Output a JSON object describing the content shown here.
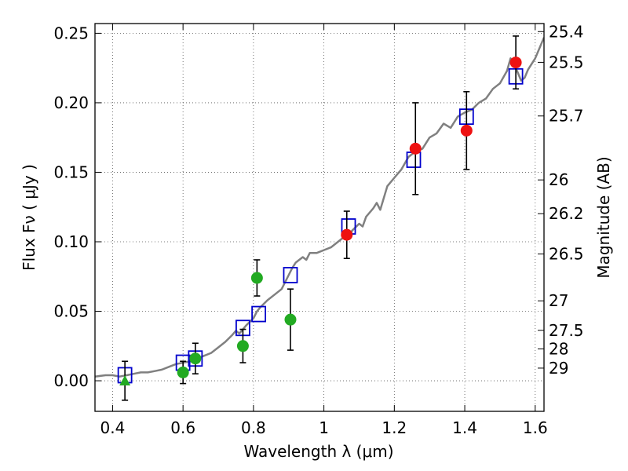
{
  "chart_data": {
    "type": "scatter",
    "xlabel": "Wavelength  λ (μm)",
    "ylabel": "Flux  Fν  ( μJy )",
    "y2label": "Magnitude (AB)",
    "xlim": [
      0.35,
      1.625
    ],
    "ylim": [
      -0.022,
      0.257
    ],
    "grid": true,
    "x_ticks": [
      0.4,
      0.6,
      0.8,
      1.0,
      1.2,
      1.4,
      1.6
    ],
    "x_tick_labels": [
      "0.4",
      "0.6",
      "0.8",
      "1",
      "1.2",
      "1.4",
      "1.6"
    ],
    "y_ticks": [
      0.0,
      0.05,
      0.1,
      0.15,
      0.2,
      0.25
    ],
    "y_tick_labels": [
      "0.00",
      "0.05",
      "0.10",
      "0.15",
      "0.20",
      "0.25"
    ],
    "y2_ticks": [
      {
        "label": "25.4",
        "flux": 0.2512
      },
      {
        "label": "25.5",
        "flux": 0.2291
      },
      {
        "label": "25.7",
        "flux": 0.1905
      },
      {
        "label": "26",
        "flux": 0.1445
      },
      {
        "label": "26.2",
        "flux": 0.1202
      },
      {
        "label": "26.5",
        "flux": 0.0912
      },
      {
        "label": "27",
        "flux": 0.0575
      },
      {
        "label": "27.5",
        "flux": 0.0363
      },
      {
        "label": "28",
        "flux": 0.0229
      },
      {
        "label": "29",
        "flux": 0.0091
      }
    ],
    "series": [
      {
        "type": "line",
        "color": "#808080",
        "x": [
          0.35,
          0.38,
          0.4,
          0.42,
          0.44,
          0.46,
          0.48,
          0.5,
          0.52,
          0.54,
          0.56,
          0.58,
          0.6,
          0.62,
          0.64,
          0.66,
          0.68,
          0.7,
          0.72,
          0.74,
          0.75,
          0.76,
          0.78,
          0.8,
          0.81,
          0.82,
          0.84,
          0.86,
          0.88,
          0.9,
          0.91,
          0.92,
          0.94,
          0.95,
          0.96,
          0.98,
          1.0,
          1.02,
          1.04,
          1.06,
          1.07,
          1.08,
          1.1,
          1.11,
          1.12,
          1.14,
          1.15,
          1.16,
          1.18,
          1.2,
          1.22,
          1.24,
          1.26,
          1.28,
          1.3,
          1.32,
          1.34,
          1.36,
          1.38,
          1.4,
          1.42,
          1.44,
          1.46,
          1.48,
          1.5,
          1.52,
          1.53,
          1.54,
          1.55,
          1.56,
          1.57,
          1.58,
          1.6,
          1.625
        ],
        "y": [
          0.003,
          0.004,
          0.004,
          0.003,
          0.004,
          0.005,
          0.006,
          0.006,
          0.007,
          0.008,
          0.01,
          0.012,
          0.013,
          0.014,
          0.016,
          0.018,
          0.02,
          0.024,
          0.028,
          0.033,
          0.036,
          0.034,
          0.04,
          0.045,
          0.05,
          0.053,
          0.058,
          0.062,
          0.066,
          0.076,
          0.081,
          0.085,
          0.089,
          0.087,
          0.092,
          0.092,
          0.094,
          0.096,
          0.1,
          0.104,
          0.102,
          0.108,
          0.113,
          0.111,
          0.118,
          0.124,
          0.128,
          0.123,
          0.14,
          0.146,
          0.152,
          0.161,
          0.165,
          0.167,
          0.175,
          0.178,
          0.185,
          0.182,
          0.19,
          0.193,
          0.195,
          0.2,
          0.203,
          0.21,
          0.214,
          0.223,
          0.232,
          0.228,
          0.222,
          0.216,
          0.218,
          0.224,
          0.232,
          0.247
        ]
      },
      {
        "type": "points",
        "marker": "open-square",
        "color": "#0000cc",
        "x": [
          0.435,
          0.6,
          0.635,
          0.77,
          0.815,
          0.905,
          1.07,
          1.255,
          1.405,
          1.545
        ],
        "y": [
          0.004,
          0.013,
          0.016,
          0.038,
          0.048,
          0.076,
          0.111,
          0.159,
          0.19,
          0.219
        ]
      },
      {
        "type": "points",
        "marker": "filled-circle",
        "color": "#22aa22",
        "x": [
          0.6,
          0.635,
          0.77,
          0.81,
          0.905
        ],
        "y": [
          0.006,
          0.016,
          0.025,
          0.074,
          0.044
        ],
        "yerr": [
          0.008,
          0.011,
          0.012,
          0.013,
          0.022
        ]
      },
      {
        "type": "points",
        "marker": "filled-circle",
        "color": "#ee1111",
        "x": [
          1.065,
          1.26,
          1.405,
          1.545
        ],
        "y": [
          0.105,
          0.167,
          0.18,
          0.229
        ],
        "yerr": [
          0.017,
          0.033,
          0.028,
          0.019
        ]
      },
      {
        "type": "points",
        "marker": "filled-triangle",
        "color": "#22aa22",
        "x": [
          0.435
        ],
        "y": [
          0.0
        ],
        "yerr": [
          0.014
        ]
      }
    ]
  }
}
